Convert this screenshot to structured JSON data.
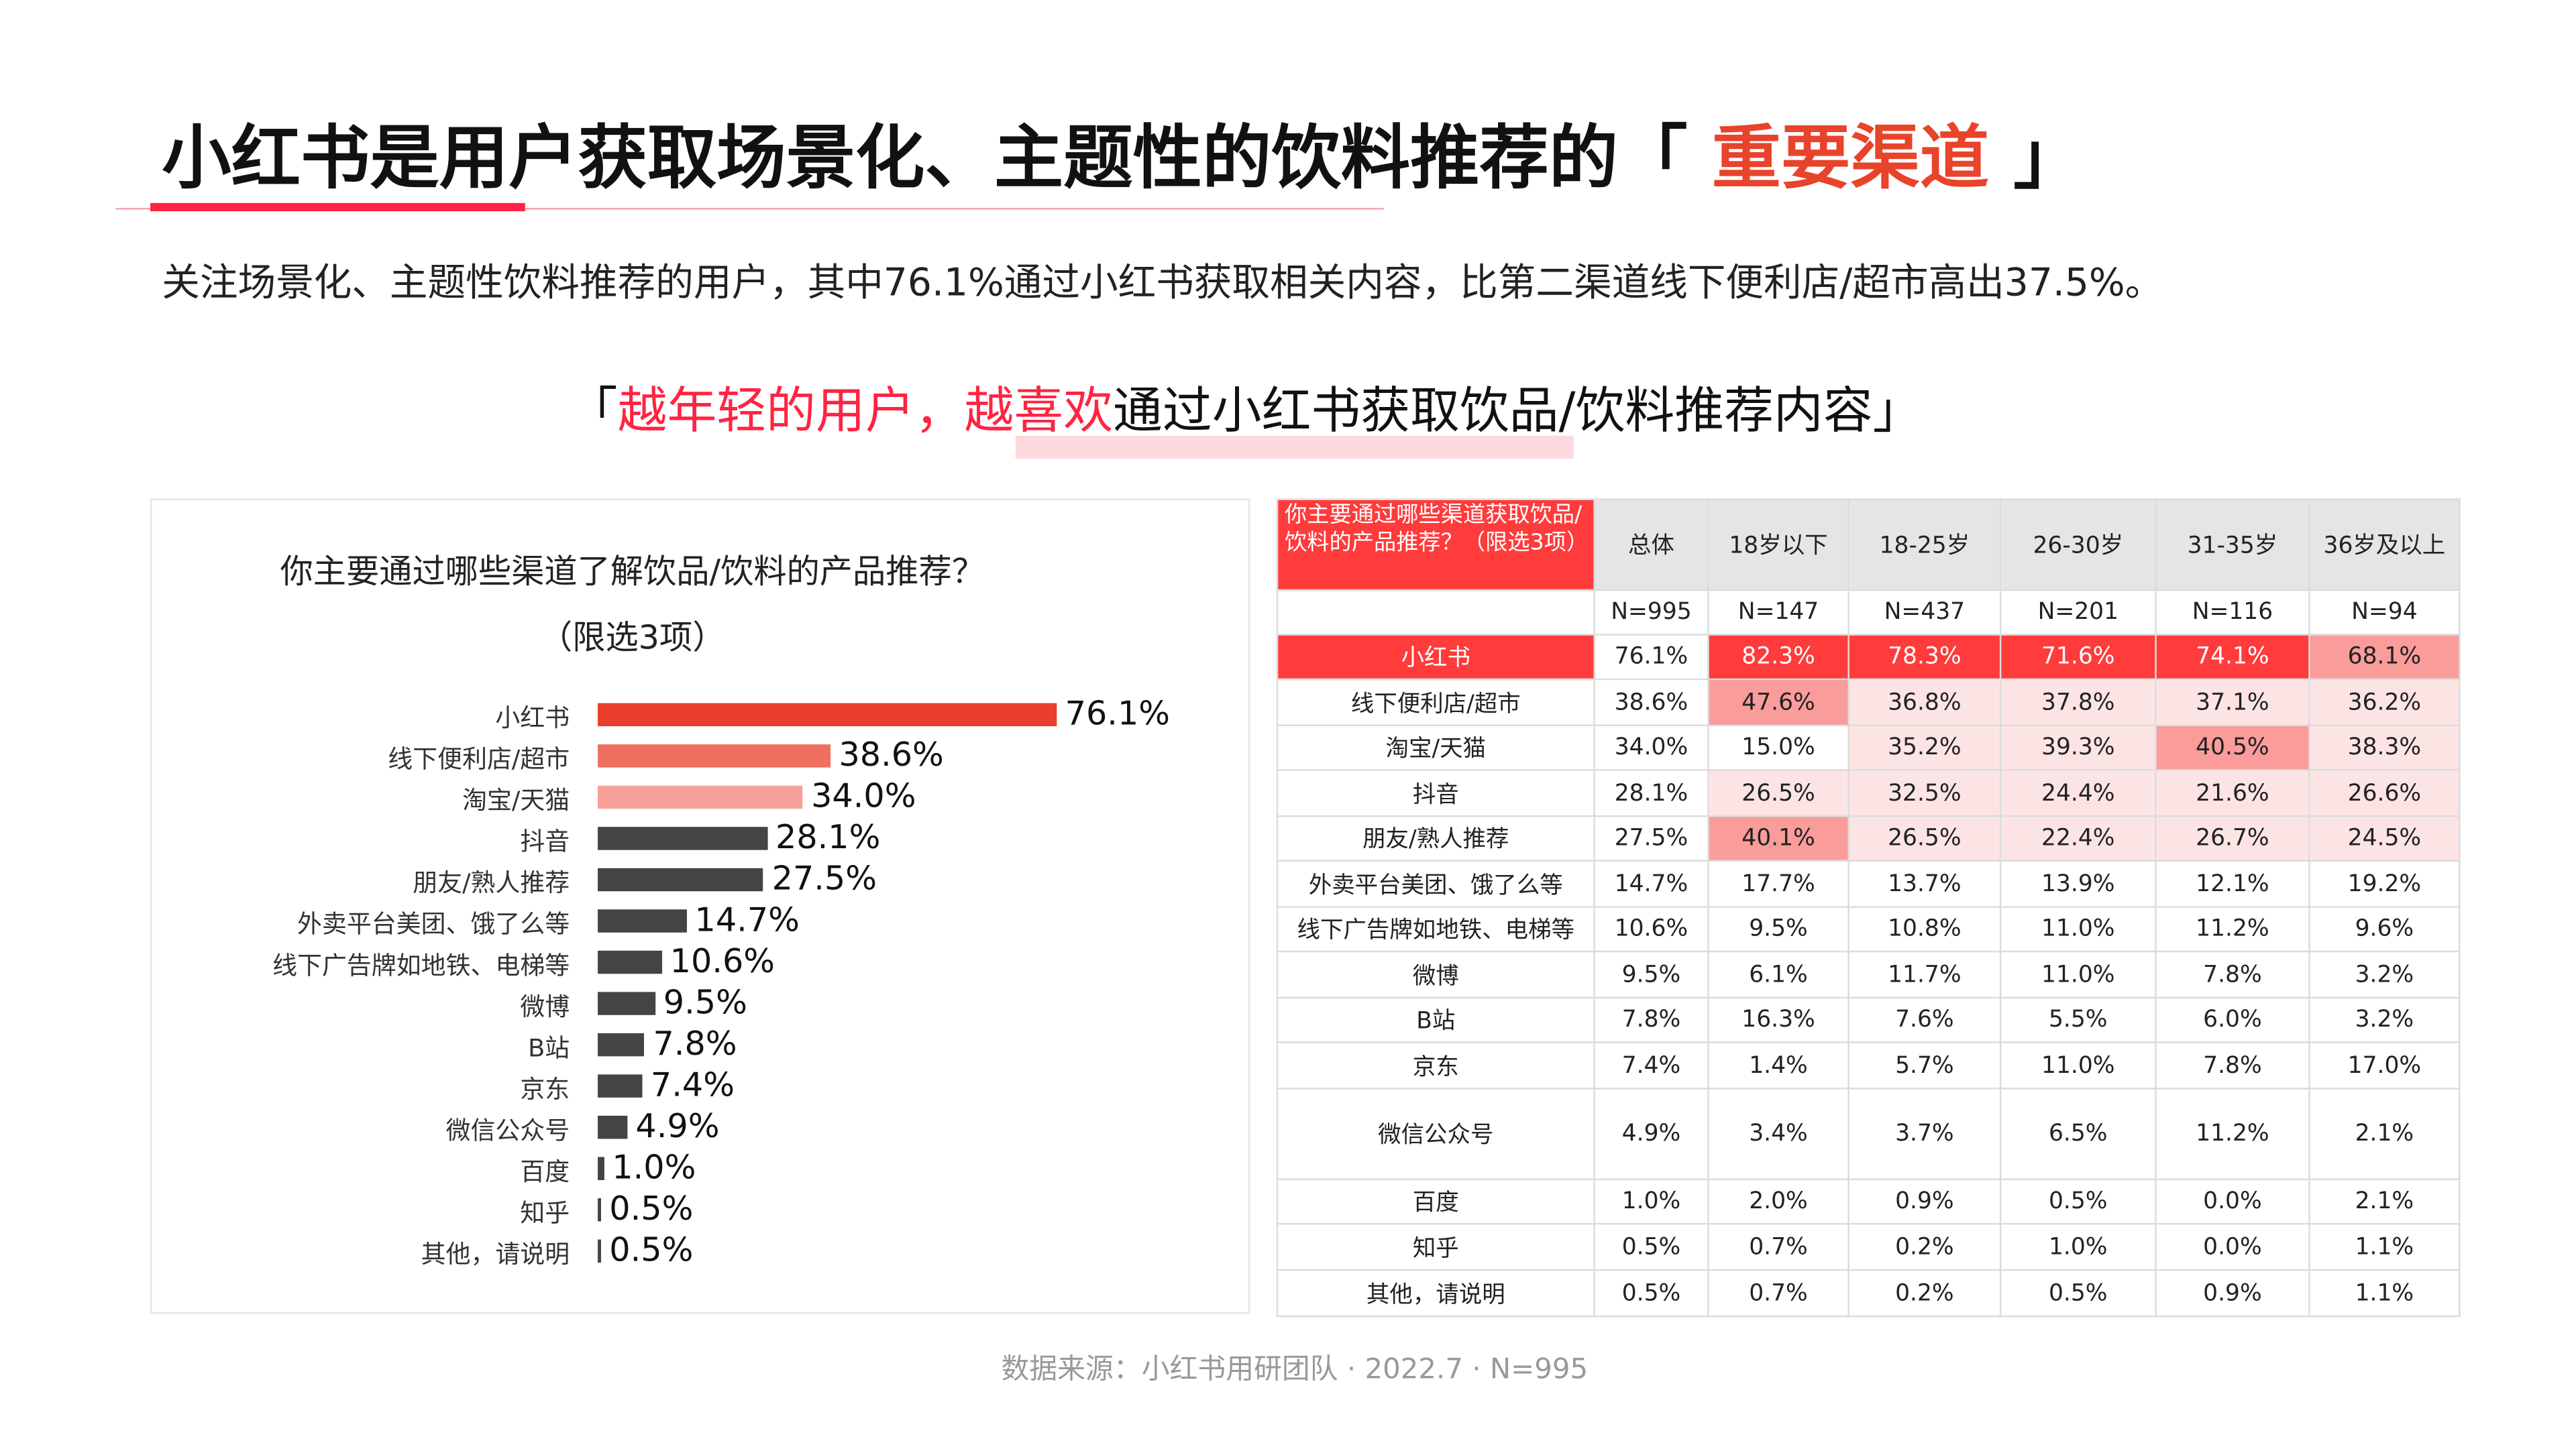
{
  "header": {
    "title_prefix": "小红书是用户获取场景化、主题性的饮料推荐的「 ",
    "title_highlight": "重要渠道",
    "title_suffix": " 」",
    "subtitle": "关注场景化、主题性饮料推荐的用户，其中76.1%通过小红书获取相关内容，比第二渠道线下便利店/超市高出37.5%。",
    "quote_open": "「",
    "quote_red": "越年轻的用户，越喜欢",
    "quote_rest": "通过小红书获取饮品/饮料推荐内容",
    "quote_close": "」"
  },
  "colors": {
    "accent": "#ff2442",
    "title_highlight": "#e8432b",
    "bar_top1": "#e8402c",
    "bar_top2": "#ef7060",
    "bar_top3": "#f7a09a",
    "bar_other": "#444444",
    "cell_strong": "#ff3b3b",
    "cell_medium": "#f99c9a",
    "cell_light": "#fde4e4"
  },
  "chart_data": {
    "type": "bar",
    "orientation": "horizontal",
    "title": "你主要通过哪些渠道了解饮品/饮料的产品推荐？",
    "subtitle": "（限选3项）",
    "categories": [
      "小红书",
      "线下便利店/超市",
      "淘宝/天猫",
      "抖音",
      "朋友/熟人推荐",
      "外卖平台美团、饿了么等",
      "线下广告牌如地铁、电梯等",
      "微博",
      "B站",
      "京东",
      "微信公众号",
      "百度",
      "知乎",
      "其他，请说明"
    ],
    "values": [
      76.1,
      38.6,
      34.0,
      28.1,
      27.5,
      14.7,
      10.6,
      9.5,
      7.8,
      7.4,
      4.9,
      1.0,
      0.5,
      0.5
    ],
    "labels": [
      "76.1%",
      "38.6%",
      "34.0%",
      "28.1%",
      "27.5%",
      "14.7%",
      "10.6%",
      "9.5%",
      "7.8%",
      "7.4%",
      "4.9%",
      "1.0%",
      "0.5%",
      "0.5%"
    ],
    "unit": "%",
    "xlim": [
      0,
      100
    ],
    "grid": false
  },
  "table": {
    "question": "你主要通过哪些渠道获取饮品/饮料的产品推荐？（限选3项）",
    "columns": [
      "总体",
      "18岁以下",
      "18-25岁",
      "26-30岁",
      "31-35岁",
      "36岁及以上"
    ],
    "n": [
      "N=995",
      "N=147",
      "N=437",
      "N=201",
      "N=116",
      "N=94"
    ],
    "rows": [
      {
        "label": "小红书",
        "values": [
          "76.1%",
          "82.3%",
          "78.3%",
          "71.6%",
          "74.1%",
          "68.1%"
        ],
        "highlight": [
          0,
          3,
          3,
          3,
          3,
          2
        ]
      },
      {
        "label": "线下便利店/超市",
        "values": [
          "38.6%",
          "47.6%",
          "36.8%",
          "37.8%",
          "37.1%",
          "36.2%"
        ],
        "highlight": [
          0,
          2,
          1,
          1,
          1,
          1
        ]
      },
      {
        "label": "淘宝/天猫",
        "values": [
          "34.0%",
          "15.0%",
          "35.2%",
          "39.3%",
          "40.5%",
          "38.3%"
        ],
        "highlight": [
          0,
          0,
          1,
          1,
          2,
          1
        ]
      },
      {
        "label": "抖音",
        "values": [
          "28.1%",
          "26.5%",
          "32.5%",
          "24.4%",
          "21.6%",
          "26.6%"
        ],
        "highlight": [
          0,
          1,
          1,
          1,
          1,
          1
        ]
      },
      {
        "label": "朋友/熟人推荐",
        "values": [
          "27.5%",
          "40.1%",
          "26.5%",
          "22.4%",
          "26.7%",
          "24.5%"
        ],
        "highlight": [
          0,
          2,
          1,
          1,
          1,
          1
        ]
      },
      {
        "label": "外卖平台美团、饿了么等",
        "values": [
          "14.7%",
          "17.7%",
          "13.7%",
          "13.9%",
          "12.1%",
          "19.2%"
        ],
        "highlight": [
          0,
          0,
          0,
          0,
          0,
          0
        ]
      },
      {
        "label": "线下广告牌如地铁、电梯等",
        "values": [
          "10.6%",
          "9.5%",
          "10.8%",
          "11.0%",
          "11.2%",
          "9.6%"
        ],
        "highlight": [
          0,
          0,
          0,
          0,
          0,
          0
        ]
      },
      {
        "label": "微博",
        "values": [
          "9.5%",
          "6.1%",
          "11.7%",
          "11.0%",
          "7.8%",
          "3.2%"
        ],
        "highlight": [
          0,
          0,
          0,
          0,
          0,
          0
        ]
      },
      {
        "label": "B站",
        "values": [
          "7.8%",
          "16.3%",
          "7.6%",
          "5.5%",
          "6.0%",
          "3.2%"
        ],
        "highlight": [
          0,
          0,
          0,
          0,
          0,
          0
        ]
      },
      {
        "label": "京东",
        "values": [
          "7.4%",
          "1.4%",
          "5.7%",
          "11.0%",
          "7.8%",
          "17.0%"
        ],
        "highlight": [
          0,
          0,
          0,
          0,
          0,
          0
        ]
      },
      {
        "label": "微信公众号",
        "values": [
          "4.9%",
          "3.4%",
          "3.7%",
          "6.5%",
          "11.2%",
          "2.1%"
        ],
        "highlight": [
          0,
          0,
          0,
          0,
          0,
          0
        ]
      },
      {
        "label": "百度",
        "values": [
          "1.0%",
          "2.0%",
          "0.9%",
          "0.5%",
          "0.0%",
          "2.1%"
        ],
        "highlight": [
          0,
          0,
          0,
          0,
          0,
          0
        ]
      },
      {
        "label": "知乎",
        "values": [
          "0.5%",
          "0.7%",
          "0.2%",
          "1.0%",
          "0.0%",
          "1.1%"
        ],
        "highlight": [
          0,
          0,
          0,
          0,
          0,
          0
        ]
      },
      {
        "label": "其他，请说明",
        "values": [
          "0.5%",
          "0.7%",
          "0.2%",
          "0.5%",
          "0.9%",
          "1.1%"
        ],
        "highlight": [
          0,
          0,
          0,
          0,
          0,
          0
        ]
      }
    ]
  },
  "footer": {
    "source": "数据来源：小红书用研团队 · 2022.7 · N=995"
  }
}
